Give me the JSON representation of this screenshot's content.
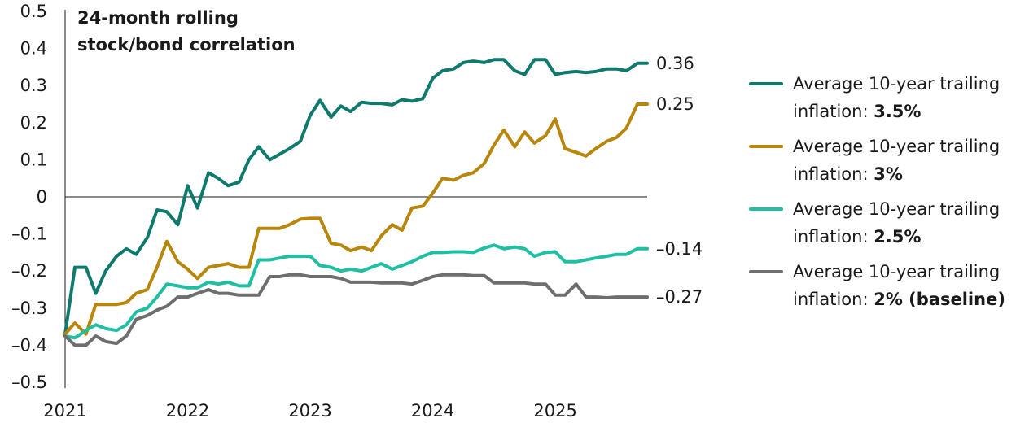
{
  "chart_data": {
    "type": "line",
    "title": "24-month rolling stock/bond correlation",
    "title_lines": [
      "24-month rolling",
      "stock/bond correlation"
    ],
    "xlabel": "",
    "ylabel": "",
    "ylim": [
      -0.5,
      0.5
    ],
    "xlim": [
      2021.0,
      2025.75
    ],
    "y_ticks": [
      "0.5",
      "0.4",
      "0.3",
      "0.2",
      "0.1",
      "0",
      "–0.1",
      "–0.2",
      "–0.3",
      "–0.4",
      "–0.5"
    ],
    "x_ticks": [
      {
        "label": "2021",
        "value": 2021.0
      },
      {
        "label": "2022",
        "value": 2022.0
      },
      {
        "label": "2023",
        "value": 2023.0
      },
      {
        "label": "2024",
        "value": 2024.0
      },
      {
        "label": "2025",
        "value": 2025.0
      }
    ],
    "grid": false,
    "zero_line": true,
    "legend_placement": "right",
    "series": [
      {
        "name": "Average 10-year trailing inflation: 3.5%",
        "legend_text": "Average 10-year trailing",
        "legend_text2": "inflation: ",
        "legend_bold": "3.5%",
        "color": "#0e7a6d",
        "end_label": "0.36",
        "x": [
          2021.0,
          2021.08,
          2021.17,
          2021.25,
          2021.33,
          2021.42,
          2021.5,
          2021.58,
          2021.67,
          2021.75,
          2021.83,
          2021.92,
          2022.0,
          2022.08,
          2022.17,
          2022.25,
          2022.33,
          2022.42,
          2022.5,
          2022.58,
          2022.67,
          2022.75,
          2022.83,
          2022.92,
          2023.0,
          2023.08,
          2023.17,
          2023.25,
          2023.33,
          2023.42,
          2023.5,
          2023.58,
          2023.67,
          2023.75,
          2023.83,
          2023.92,
          2024.0,
          2024.08,
          2024.17,
          2024.25,
          2024.33,
          2024.42,
          2024.5,
          2024.58,
          2024.67,
          2024.75,
          2024.83,
          2024.92,
          2025.0,
          2025.08,
          2025.17,
          2025.25,
          2025.33,
          2025.42,
          2025.5,
          2025.58,
          2025.67,
          2025.75
        ],
        "values": [
          -0.37,
          -0.19,
          -0.19,
          -0.26,
          -0.2,
          -0.16,
          -0.14,
          -0.155,
          -0.11,
          -0.035,
          -0.04,
          -0.075,
          0.03,
          -0.03,
          0.065,
          0.05,
          0.03,
          0.04,
          0.1,
          0.135,
          0.1,
          0.115,
          0.13,
          0.15,
          0.22,
          0.26,
          0.215,
          0.245,
          0.23,
          0.255,
          0.252,
          0.252,
          0.248,
          0.262,
          0.258,
          0.265,
          0.32,
          0.34,
          0.345,
          0.362,
          0.366,
          0.362,
          0.37,
          0.37,
          0.34,
          0.33,
          0.37,
          0.37,
          0.33,
          0.335,
          0.338,
          0.335,
          0.338,
          0.345,
          0.345,
          0.34,
          0.36,
          0.36
        ]
      },
      {
        "name": "Average 10-year trailing inflation: 3%",
        "legend_text": "Average 10-year trailing",
        "legend_text2": "inflation: ",
        "legend_bold": "3%",
        "color": "#b8860b",
        "end_label": "0.25",
        "x": [
          2021.0,
          2021.08,
          2021.17,
          2021.25,
          2021.33,
          2021.42,
          2021.5,
          2021.58,
          2021.67,
          2021.75,
          2021.83,
          2021.92,
          2022.0,
          2022.08,
          2022.17,
          2022.25,
          2022.33,
          2022.42,
          2022.5,
          2022.58,
          2022.67,
          2022.75,
          2022.83,
          2022.92,
          2023.0,
          2023.08,
          2023.17,
          2023.25,
          2023.33,
          2023.42,
          2023.5,
          2023.58,
          2023.67,
          2023.75,
          2023.83,
          2023.92,
          2024.0,
          2024.08,
          2024.17,
          2024.25,
          2024.33,
          2024.42,
          2024.5,
          2024.58,
          2024.67,
          2024.75,
          2024.83,
          2024.92,
          2025.0,
          2025.08,
          2025.17,
          2025.25,
          2025.33,
          2025.42,
          2025.5,
          2025.58,
          2025.67,
          2025.75
        ],
        "values": [
          -0.37,
          -0.34,
          -0.37,
          -0.29,
          -0.29,
          -0.29,
          -0.285,
          -0.26,
          -0.25,
          -0.19,
          -0.12,
          -0.175,
          -0.195,
          -0.22,
          -0.19,
          -0.185,
          -0.18,
          -0.19,
          -0.19,
          -0.085,
          -0.085,
          -0.085,
          -0.075,
          -0.06,
          -0.058,
          -0.058,
          -0.125,
          -0.13,
          -0.145,
          -0.135,
          -0.145,
          -0.105,
          -0.075,
          -0.09,
          -0.03,
          -0.025,
          0.01,
          0.05,
          0.045,
          0.058,
          0.065,
          0.09,
          0.14,
          0.18,
          0.135,
          0.175,
          0.145,
          0.165,
          0.21,
          0.13,
          0.12,
          0.11,
          0.13,
          0.15,
          0.16,
          0.185,
          0.25,
          0.25
        ]
      },
      {
        "name": "Average 10-year trailing inflation: 2.5%",
        "legend_text": "Average 10-year trailing",
        "legend_text2": "inflation: ",
        "legend_bold": "2.5%",
        "color": "#1fbfa3",
        "end_label": "–0.14",
        "x": [
          2021.0,
          2021.08,
          2021.17,
          2021.25,
          2021.33,
          2021.42,
          2021.5,
          2021.58,
          2021.67,
          2021.75,
          2021.83,
          2021.92,
          2022.0,
          2022.08,
          2022.17,
          2022.25,
          2022.33,
          2022.42,
          2022.5,
          2022.58,
          2022.67,
          2022.75,
          2022.83,
          2022.92,
          2023.0,
          2023.08,
          2023.17,
          2023.25,
          2023.33,
          2023.42,
          2023.5,
          2023.58,
          2023.67,
          2023.75,
          2023.83,
          2023.92,
          2024.0,
          2024.08,
          2024.17,
          2024.25,
          2024.33,
          2024.42,
          2024.5,
          2024.58,
          2024.67,
          2024.75,
          2024.83,
          2024.92,
          2025.0,
          2025.08,
          2025.17,
          2025.25,
          2025.33,
          2025.42,
          2025.5,
          2025.58,
          2025.67,
          2025.75
        ],
        "values": [
          -0.375,
          -0.38,
          -0.36,
          -0.345,
          -0.355,
          -0.36,
          -0.345,
          -0.31,
          -0.3,
          -0.27,
          -0.235,
          -0.24,
          -0.245,
          -0.245,
          -0.23,
          -0.235,
          -0.23,
          -0.24,
          -0.24,
          -0.17,
          -0.17,
          -0.165,
          -0.16,
          -0.16,
          -0.16,
          -0.185,
          -0.19,
          -0.2,
          -0.195,
          -0.2,
          -0.19,
          -0.18,
          -0.195,
          -0.185,
          -0.175,
          -0.16,
          -0.15,
          -0.15,
          -0.148,
          -0.148,
          -0.15,
          -0.138,
          -0.13,
          -0.14,
          -0.135,
          -0.14,
          -0.16,
          -0.15,
          -0.148,
          -0.175,
          -0.175,
          -0.17,
          -0.165,
          -0.16,
          -0.155,
          -0.155,
          -0.14,
          -0.14
        ]
      },
      {
        "name": "Average 10-year trailing inflation: 2% (baseline)",
        "legend_text": "Average 10-year trailing",
        "legend_text2": "inflation: ",
        "legend_bold": "2% (baseline)",
        "color": "#6e6e6e",
        "end_label": "–0.27",
        "x": [
          2021.0,
          2021.08,
          2021.17,
          2021.25,
          2021.33,
          2021.42,
          2021.5,
          2021.58,
          2021.67,
          2021.75,
          2021.83,
          2021.92,
          2022.0,
          2022.08,
          2022.17,
          2022.25,
          2022.33,
          2022.42,
          2022.5,
          2022.58,
          2022.67,
          2022.75,
          2022.83,
          2022.92,
          2023.0,
          2023.08,
          2023.17,
          2023.25,
          2023.33,
          2023.42,
          2023.5,
          2023.58,
          2023.67,
          2023.75,
          2023.83,
          2023.92,
          2024.0,
          2024.08,
          2024.17,
          2024.25,
          2024.33,
          2024.42,
          2024.5,
          2024.58,
          2024.67,
          2024.75,
          2024.83,
          2024.92,
          2025.0,
          2025.08,
          2025.17,
          2025.25,
          2025.33,
          2025.42,
          2025.5,
          2025.58,
          2025.67,
          2025.75
        ],
        "values": [
          -0.375,
          -0.4,
          -0.4,
          -0.375,
          -0.39,
          -0.395,
          -0.375,
          -0.33,
          -0.32,
          -0.305,
          -0.295,
          -0.27,
          -0.27,
          -0.26,
          -0.25,
          -0.26,
          -0.26,
          -0.265,
          -0.265,
          -0.265,
          -0.215,
          -0.215,
          -0.21,
          -0.21,
          -0.215,
          -0.215,
          -0.215,
          -0.22,
          -0.23,
          -0.23,
          -0.23,
          -0.232,
          -0.232,
          -0.232,
          -0.235,
          -0.225,
          -0.215,
          -0.21,
          -0.21,
          -0.21,
          -0.212,
          -0.212,
          -0.232,
          -0.232,
          -0.232,
          -0.232,
          -0.235,
          -0.235,
          -0.265,
          -0.265,
          -0.235,
          -0.27,
          -0.27,
          -0.272,
          -0.27,
          -0.27,
          -0.27,
          -0.27
        ]
      }
    ]
  }
}
